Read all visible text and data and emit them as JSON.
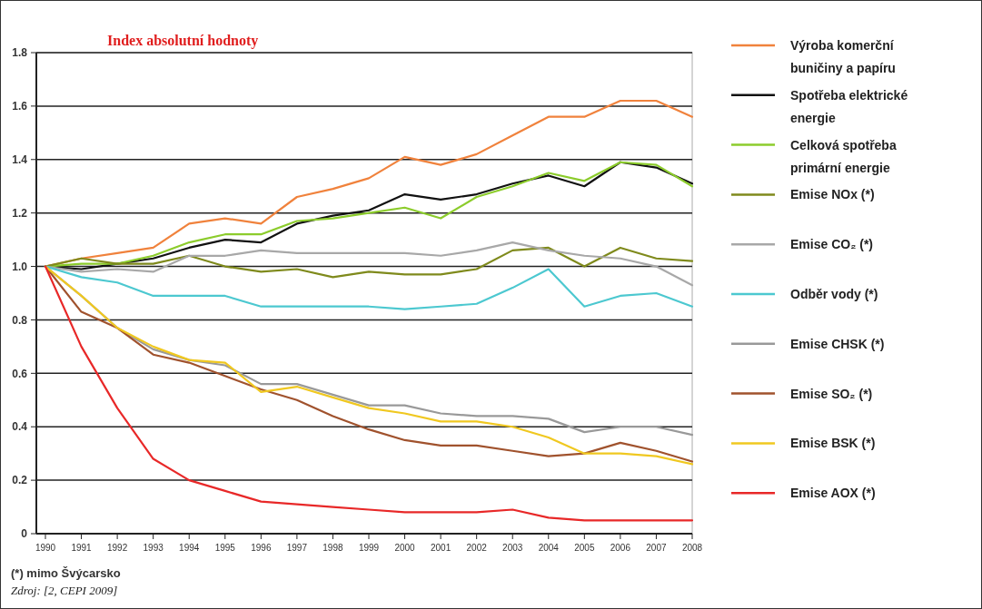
{
  "chart_data": {
    "type": "line",
    "title": "Index absolutní hodnoty",
    "categories": [
      "1990",
      "1991",
      "1992",
      "1993",
      "1994",
      "1995",
      "1996",
      "1997",
      "1998",
      "1999",
      "2000",
      "2001",
      "2002",
      "2003",
      "2004",
      "2005",
      "2006",
      "2007",
      "2008"
    ],
    "ylim": [
      0,
      1.8
    ],
    "yticks": [
      0,
      0.2,
      0.4,
      0.6,
      0.8,
      {
        "value": 1,
        "label": "1.0"
      },
      1.2,
      1.4,
      1.6,
      1.8
    ],
    "grid": "y",
    "legend": "right",
    "marker": "none",
    "line_style": "solid",
    "series": [
      {
        "name": "Výroba komerční buničiny a papíru",
        "color": "#f0823c",
        "values": [
          1.0,
          1.03,
          1.05,
          1.07,
          1.16,
          1.18,
          1.16,
          1.26,
          1.29,
          1.33,
          1.41,
          1.38,
          1.42,
          1.49,
          1.56,
          1.56,
          1.62,
          1.62,
          1.56
        ]
      },
      {
        "name": "Spotřeba elektrické energie",
        "color": "#111111",
        "values": [
          1.0,
          0.99,
          1.01,
          1.03,
          1.07,
          1.1,
          1.09,
          1.16,
          1.19,
          1.21,
          1.27,
          1.25,
          1.27,
          1.31,
          1.34,
          1.3,
          1.39,
          1.37,
          1.31
        ]
      },
      {
        "name": "Celková spotřeba primární energie",
        "color": "#8ccc2c",
        "values": [
          1.0,
          1.01,
          1.01,
          1.04,
          1.09,
          1.12,
          1.12,
          1.17,
          1.18,
          1.2,
          1.22,
          1.18,
          1.26,
          1.3,
          1.35,
          1.32,
          1.39,
          1.38,
          1.3
        ]
      },
      {
        "name": "Emise NOx (*)",
        "color": "#7f8a1c",
        "values": [
          1.0,
          1.03,
          1.01,
          1.01,
          1.04,
          1.0,
          0.98,
          0.99,
          0.96,
          0.98,
          0.97,
          0.97,
          0.99,
          1.06,
          1.07,
          1.0,
          1.07,
          1.03,
          1.02
        ]
      },
      {
        "name": "Emise CO₂ (*)",
        "color": "#a8a8a8",
        "values": [
          1.0,
          0.98,
          0.99,
          0.98,
          1.04,
          1.04,
          1.06,
          1.05,
          1.05,
          1.05,
          1.05,
          1.04,
          1.06,
          1.09,
          1.06,
          1.04,
          1.03,
          1.0,
          0.93
        ]
      },
      {
        "name": "Odběr vody (*)",
        "color": "#4cc8d0",
        "values": [
          1.0,
          0.96,
          0.94,
          0.89,
          0.89,
          0.89,
          0.85,
          0.85,
          0.85,
          0.85,
          0.84,
          0.85,
          0.86,
          0.92,
          0.99,
          0.85,
          0.89,
          0.9,
          0.85
        ]
      },
      {
        "name": "Emise CHSK (*)",
        "color": "#999999",
        "values": [
          1.0,
          0.89,
          0.77,
          0.69,
          0.65,
          0.63,
          0.56,
          0.56,
          0.52,
          0.48,
          0.48,
          0.45,
          0.44,
          0.44,
          0.43,
          0.38,
          0.4,
          0.4,
          0.37
        ]
      },
      {
        "name": "Emise SO₂ (*)",
        "color": "#a0522d",
        "values": [
          1.0,
          0.83,
          0.77,
          0.67,
          0.64,
          0.59,
          0.54,
          0.5,
          0.44,
          0.39,
          0.35,
          0.33,
          0.33,
          0.31,
          0.29,
          0.3,
          0.34,
          0.31,
          0.27
        ]
      },
      {
        "name": "Emise BSK (*)",
        "color": "#f0c820",
        "values": [
          1.0,
          0.89,
          0.77,
          0.7,
          0.65,
          0.64,
          0.53,
          0.55,
          0.51,
          0.47,
          0.45,
          0.42,
          0.42,
          0.4,
          0.36,
          0.3,
          0.3,
          0.29,
          0.26
        ]
      },
      {
        "name": "Emise AOX (*)",
        "color": "#e82828",
        "values": [
          1.0,
          0.7,
          0.47,
          0.28,
          0.2,
          0.16,
          0.12,
          0.11,
          0.1,
          0.09,
          0.08,
          0.08,
          0.08,
          0.09,
          0.06,
          0.05,
          0.05,
          0.05,
          0.05
        ]
      }
    ],
    "annotations": [
      "(*) mimo Švýcarsko",
      "Zdroj: [2, CEPI 2009]"
    ]
  }
}
